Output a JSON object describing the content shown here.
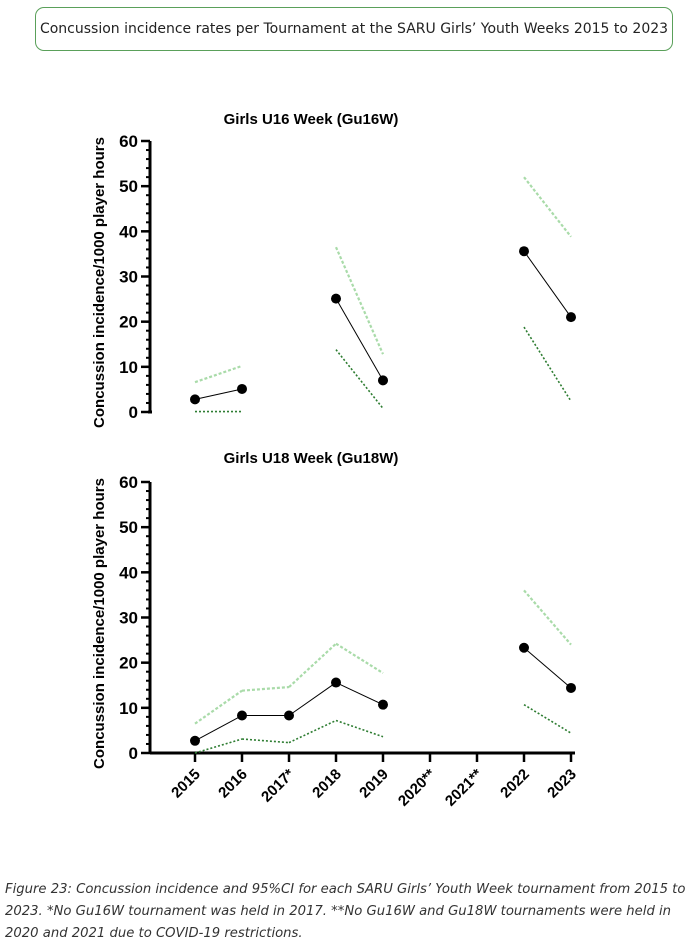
{
  "page": {
    "header_title": "Concussion incidence rates per Tournament at the SARU Girls’ Youth Weeks 2015 to 2023",
    "caption": "Figure 23: Concussion incidence and 95%CI for each SARU Girls’ Youth Week tournament from 2015 to 2023. *No Gu16W tournament was held in 2017. **No Gu16W and Gu18W tournaments were held in 2020 and 2021 due to COVID-19 restrictions."
  },
  "colors": {
    "incidence": "#000000",
    "upper_ci": "#a9dba9",
    "lower_ci": "#2e7d32",
    "axis": "#000000"
  },
  "chart_data": [
    {
      "type": "line",
      "title": "Girls U16 Week (Gu16W)",
      "ylabel": "Concussion incidence/1000 player hours",
      "ylim": [
        0,
        60
      ],
      "yticks": [
        "0",
        "10",
        "20",
        "30",
        "40",
        "50",
        "60"
      ],
      "categories": [
        "2015",
        "2016",
        "2017*",
        "2018",
        "2019",
        "2020**",
        "2021**",
        "2022",
        "2023"
      ],
      "show_x_labels": false,
      "series": [
        {
          "role": "incidence",
          "values": [
            2.8,
            5.1,
            null,
            25.1,
            7.0,
            null,
            null,
            35.6,
            21.0
          ]
        },
        {
          "role": "upper_ci",
          "values": [
            6.6,
            10.2,
            null,
            36.5,
            12.8,
            null,
            null,
            52.0,
            38.8
          ]
        },
        {
          "role": "lower_ci",
          "values": [
            0.1,
            0.1,
            null,
            13.8,
            0.8,
            null,
            null,
            18.8,
            2.4
          ]
        }
      ]
    },
    {
      "type": "line",
      "title": "Girls U18 Week (Gu18W)",
      "ylabel": "Concussion incidence/1000 player hours",
      "ylim": [
        0,
        60
      ],
      "yticks": [
        "0",
        "10",
        "20",
        "30",
        "40",
        "50",
        "60"
      ],
      "categories": [
        "2015",
        "2016",
        "2017*",
        "2018",
        "2019",
        "2020**",
        "2021**",
        "2022",
        "2023"
      ],
      "show_x_labels": true,
      "series": [
        {
          "role": "incidence",
          "values": [
            2.7,
            8.3,
            8.3,
            15.6,
            10.7,
            null,
            null,
            23.3,
            14.4
          ]
        },
        {
          "role": "upper_ci",
          "values": [
            6.5,
            13.8,
            14.6,
            24.2,
            17.7,
            null,
            null,
            36.0,
            24.0
          ]
        },
        {
          "role": "lower_ci",
          "values": [
            0.0,
            3.1,
            2.3,
            7.2,
            3.6,
            null,
            null,
            10.7,
            4.4
          ]
        }
      ]
    }
  ]
}
